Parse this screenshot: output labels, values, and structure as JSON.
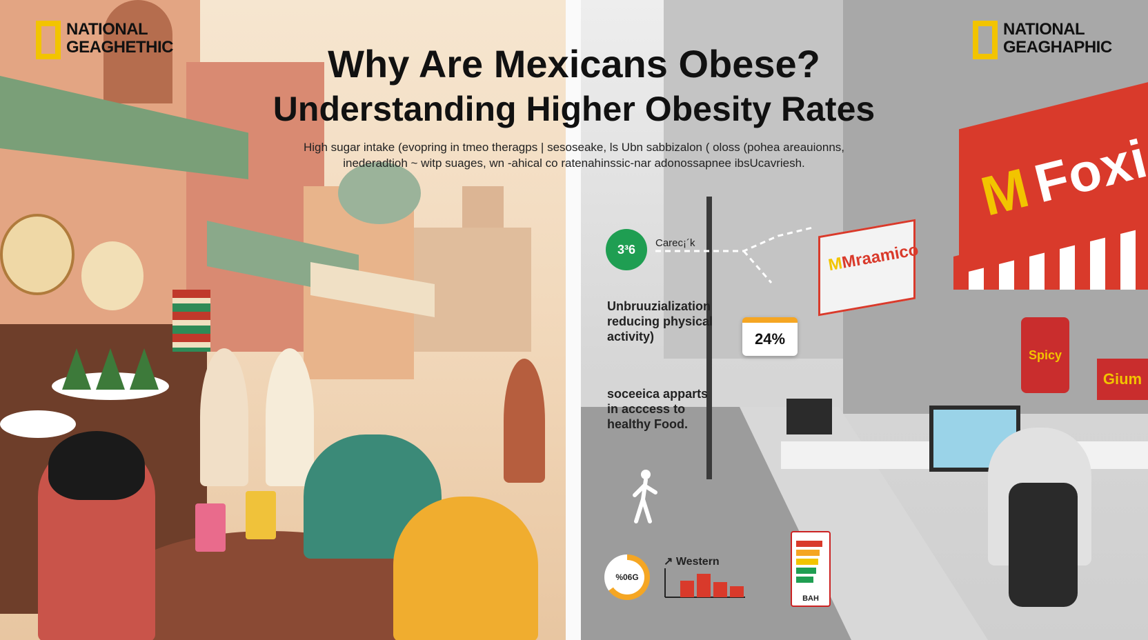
{
  "logo": {
    "left_text": "NATIONAL\nGEAGHETHIC",
    "right_text": "NATIONAL\nGEAGHAPHIC"
  },
  "title": {
    "line1": "Why Are Mexicans Obese?",
    "line2": "Understanding Higher Obesity Rates"
  },
  "subtitle": {
    "line1": "High sugar intake (evoprin​g in tmeo theragps | sesoseake, ls Ubn sabbizalon ( oloss (pohea areauionns,",
    "line2": "in​eder​adtioh ~ witp suages, wn -ahical co ratenahinssic-nar adonossapnee ibsUcavriesh."
  },
  "annotations": {
    "badge_value": "3³6",
    "badge_label": "Carec¡´k",
    "urbanization": "Unbruuzialization\nreducing physical\nactivity)",
    "percent_card": "24%",
    "socioeconomic": "soceeica apparts\nin acccess to\nhealthy Food.",
    "pie_label": "%06G",
    "western_label": "Western",
    "nutrition_footer": "BAH"
  },
  "signs": {
    "big_brand": "Foxic",
    "small_brand": "Mraamico",
    "snack_bag": "Spicy",
    "snack_box": "Gium"
  },
  "colors": {
    "logo_yellow": "#f2c400",
    "brand_red": "#d93a2b",
    "badge_green": "#1f9e52",
    "accent_orange": "#f5a623"
  }
}
